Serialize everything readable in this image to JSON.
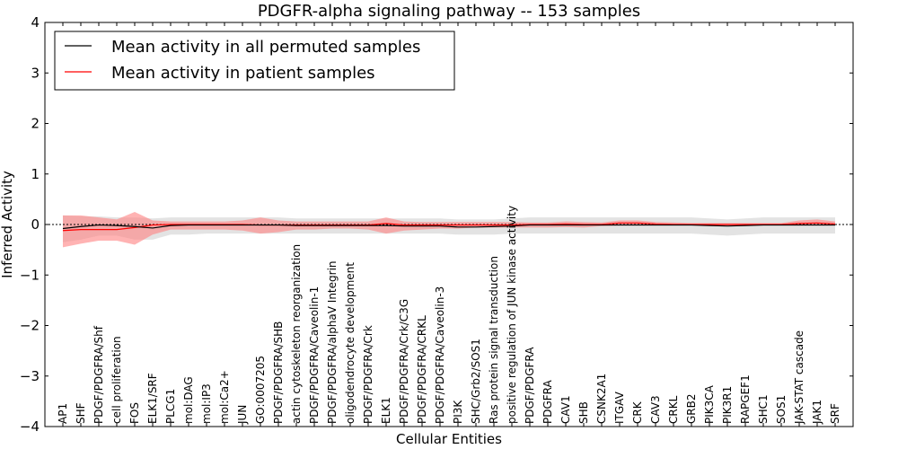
{
  "chart_data": {
    "type": "line",
    "title": "PDGFR-alpha signaling pathway -- 153 samples",
    "xlabel": "Cellular Entities",
    "ylabel": "Inferred Activity",
    "ylim": [
      -4,
      4
    ],
    "yticks": [
      -4,
      -3,
      -2,
      -1,
      0,
      1,
      2,
      3,
      4
    ],
    "ytick_labels": [
      "−4",
      "−3",
      "−2",
      "−1",
      "0",
      "1",
      "2",
      "3",
      "4"
    ],
    "legend_position": "top-left",
    "colors": {
      "permuted": "#000000",
      "patient": "#ff0000",
      "patient_band": "#ff8080",
      "permuted_band": "#c8c8c8"
    },
    "categories": [
      "AP1",
      "SHF",
      "PDGF/PDGFRA/Shf",
      "cell proliferation",
      "FOS",
      "ELK1/SRF",
      "PLCG1",
      "mol:DAG",
      "mol:IP3",
      "mol:Ca2+",
      "JUN",
      "GO:0007205",
      "PDGF/PDGFRA/SHB",
      "actin cytoskeleton reorganization",
      "PDGF/PDGFRA/Caveolin-1",
      "PDGF/PDGFRA/alphaV Integrin",
      "oligodendrocyte development",
      "PDGF/PDGFRA/Crk",
      "ELK1",
      "PDGF/PDGFRA/Crk/C3G",
      "PDGF/PDGFRA/CRKL",
      "PDGF/PDGFRA/Caveolin-3",
      "PI3K",
      "SHC/Grb2/SOS1",
      "Ras protein signal transduction",
      "positive regulation of JUN kinase activity",
      "PDGF/PDGFRA",
      "PDGFRA",
      "CAV1",
      "SHB",
      "CSNK2A1",
      "ITGAV",
      "CRK",
      "CAV3",
      "CRKL",
      "GRB2",
      "PIK3CA",
      "PIK3R1",
      "RAPGEF1",
      "SHC1",
      "SOS1",
      "JAK-STAT cascade",
      "JAK1",
      "SRF"
    ],
    "series": [
      {
        "name": "Mean activity in all permuted samples",
        "values": [
          -0.08,
          -0.04,
          -0.01,
          -0.02,
          -0.04,
          -0.07,
          -0.02,
          -0.01,
          -0.01,
          -0.01,
          -0.01,
          -0.01,
          -0.01,
          -0.02,
          -0.02,
          -0.02,
          -0.02,
          -0.02,
          -0.02,
          -0.03,
          -0.03,
          -0.03,
          -0.05,
          -0.05,
          -0.04,
          -0.03,
          -0.01,
          -0.01,
          -0.01,
          -0.01,
          -0.01,
          -0.01,
          -0.01,
          -0.01,
          -0.01,
          -0.01,
          -0.02,
          -0.03,
          -0.02,
          -0.01,
          -0.01,
          -0.01,
          -0.01,
          -0.01
        ],
        "lower": [
          -0.35,
          -0.3,
          -0.22,
          -0.22,
          -0.3,
          -0.3,
          -0.2,
          -0.2,
          -0.18,
          -0.18,
          -0.18,
          -0.18,
          -0.18,
          -0.18,
          -0.18,
          -0.18,
          -0.18,
          -0.18,
          -0.18,
          -0.18,
          -0.18,
          -0.18,
          -0.2,
          -0.2,
          -0.2,
          -0.18,
          -0.18,
          -0.18,
          -0.18,
          -0.18,
          -0.18,
          -0.18,
          -0.18,
          -0.18,
          -0.18,
          -0.18,
          -0.2,
          -0.22,
          -0.2,
          -0.18,
          -0.18,
          -0.18,
          -0.18,
          -0.18
        ],
        "upper": [
          0.18,
          0.16,
          0.16,
          0.14,
          0.14,
          0.12,
          0.14,
          0.14,
          0.14,
          0.14,
          0.14,
          0.14,
          0.14,
          0.12,
          0.12,
          0.12,
          0.12,
          0.12,
          0.12,
          0.12,
          0.12,
          0.12,
          0.1,
          0.1,
          0.1,
          0.12,
          0.14,
          0.14,
          0.14,
          0.14,
          0.14,
          0.14,
          0.14,
          0.14,
          0.14,
          0.14,
          0.12,
          0.1,
          0.12,
          0.14,
          0.14,
          0.14,
          0.14,
          0.14
        ]
      },
      {
        "name": "Mean activity in patient samples",
        "values": [
          -0.12,
          -0.1,
          -0.1,
          -0.1,
          -0.06,
          -0.01,
          0.0,
          0.0,
          0.0,
          0.0,
          0.0,
          -0.01,
          -0.01,
          -0.01,
          -0.01,
          -0.01,
          -0.01,
          -0.01,
          0.02,
          -0.01,
          -0.01,
          -0.01,
          -0.01,
          -0.01,
          -0.01,
          -0.01,
          0.0,
          0.0,
          0.01,
          0.0,
          0.0,
          0.03,
          0.03,
          0.01,
          0.0,
          0.0,
          0.0,
          0.0,
          0.0,
          0.0,
          0.0,
          0.02,
          0.03,
          0.01
        ],
        "lower": [
          -0.45,
          -0.38,
          -0.32,
          -0.32,
          -0.4,
          -0.2,
          -0.1,
          -0.1,
          -0.1,
          -0.1,
          -0.12,
          -0.18,
          -0.15,
          -0.1,
          -0.1,
          -0.08,
          -0.08,
          -0.1,
          -0.18,
          -0.12,
          -0.1,
          -0.08,
          -0.08,
          -0.06,
          -0.06,
          -0.06,
          -0.06,
          -0.06,
          -0.05,
          -0.06,
          -0.03,
          -0.02,
          -0.02,
          -0.02,
          -0.02,
          -0.02,
          -0.02,
          -0.02,
          -0.02,
          -0.02,
          -0.02,
          -0.02,
          -0.02,
          -0.02
        ],
        "upper": [
          0.18,
          0.18,
          0.14,
          0.1,
          0.25,
          0.08,
          0.06,
          0.06,
          0.06,
          0.06,
          0.08,
          0.14,
          0.08,
          0.06,
          0.06,
          0.06,
          0.06,
          0.06,
          0.14,
          0.06,
          0.05,
          0.05,
          0.05,
          0.05,
          0.05,
          0.05,
          0.04,
          0.04,
          0.06,
          0.05,
          0.04,
          0.08,
          0.08,
          0.05,
          0.04,
          0.03,
          0.03,
          0.03,
          0.03,
          0.03,
          0.03,
          0.08,
          0.1,
          0.06
        ]
      }
    ]
  }
}
